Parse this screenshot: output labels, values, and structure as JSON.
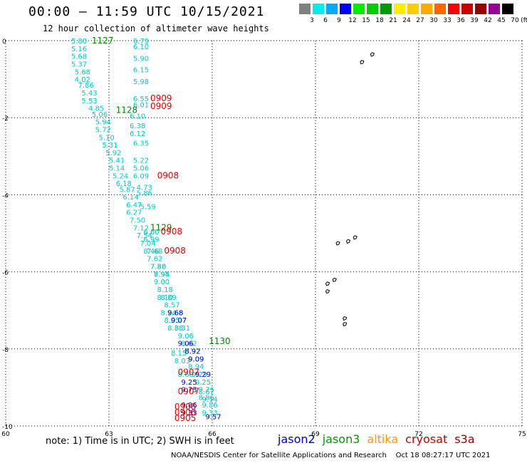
{
  "header": {
    "title": "00:00 – 11:59 UTC 10/15/2021",
    "subtitle": "12 hour collection of altimeter wave heights"
  },
  "scale": {
    "labels": [
      "3",
      "6",
      "9",
      "12",
      "15",
      "18",
      "21",
      "24",
      "27",
      "30",
      "33",
      "36",
      "39",
      "42",
      "45",
      "70"
    ],
    "unit": "(ft)",
    "colors": [
      "#808080",
      "#00eeee",
      "#00aaff",
      "#0000ff",
      "#00ee00",
      "#00cc00",
      "#009900",
      "#ffee00",
      "#ffcc00",
      "#ffaa00",
      "#ff6600",
      "#ff0000",
      "#cc0000",
      "#990000",
      "#990099",
      "#000000"
    ]
  },
  "footer": {
    "note": "note: 1) Time is in UTC; 2) SWH is in feet",
    "credit": "NOAA/NESDIS Center for Satellite Applications and Research    Oct 18 08:27:17 UTC 2021",
    "satellites": [
      {
        "name": "jason2",
        "color": "#0000cc"
      },
      {
        "name": "jason3",
        "color": "#009900"
      },
      {
        "name": "altika",
        "color": "#ff9900"
      },
      {
        "name": "cryosat",
        "color": "#cc0000"
      },
      {
        "name": "s3a",
        "color": "#990000"
      }
    ]
  },
  "chart_data": {
    "type": "scatter",
    "title": "00:00 – 11:59 UTC 10/15/2021",
    "subtitle": "12 hour collection of altimeter wave heights",
    "xlim": [
      60,
      75
    ],
    "ylim": [
      -10,
      0
    ],
    "x_ticks": [
      "60",
      "63",
      "66",
      "69",
      "72",
      "75"
    ],
    "y_ticks": [
      "0",
      "-2",
      "-4",
      "-6",
      "-8",
      "-10"
    ],
    "grid": true,
    "track_color": "#00cccc",
    "time_labels": [
      {
        "text": "1127",
        "x": 62.5,
        "y": 0.0,
        "color": "#008800"
      },
      {
        "text": "0909",
        "x": 64.2,
        "y": -1.5,
        "color": "#ee0000"
      },
      {
        "text": "0909",
        "x": 64.2,
        "y": -1.7,
        "color": "#ee0000"
      },
      {
        "text": "1128",
        "x": 63.2,
        "y": -1.8,
        "color": "#008800"
      },
      {
        "text": "0908",
        "x": 64.4,
        "y": -3.5,
        "color": "#ee0000"
      },
      {
        "text": "1129",
        "x": 64.2,
        "y": -4.85,
        "color": "#008800"
      },
      {
        "text": "0908",
        "x": 64.5,
        "y": -4.95,
        "color": "#ee0000"
      },
      {
        "text": "0908",
        "x": 64.6,
        "y": -5.45,
        "color": "#ee0000"
      },
      {
        "text": "1130",
        "x": 65.9,
        "y": -7.8,
        "color": "#008800"
      },
      {
        "text": "0907",
        "x": 65.0,
        "y": -8.6,
        "color": "#ee0000"
      },
      {
        "text": "0907",
        "x": 65.0,
        "y": -9.1,
        "color": "#ee0000"
      },
      {
        "text": "0906",
        "x": 64.9,
        "y": -9.5,
        "color": "#ee0000"
      },
      {
        "text": "0906",
        "x": 64.9,
        "y": -9.65,
        "color": "#ee0000"
      },
      {
        "text": "0905",
        "x": 64.9,
        "y": -9.8,
        "color": "#ee0000"
      }
    ],
    "series": [
      {
        "color": "#00cccc",
        "points": [
          {
            "x": 61.9,
            "y": 0.0,
            "v": "5.80"
          },
          {
            "x": 61.9,
            "y": -0.2,
            "v": "5.16"
          },
          {
            "x": 61.9,
            "y": -0.4,
            "v": "5.68"
          },
          {
            "x": 61.9,
            "y": -0.6,
            "v": "5.37"
          },
          {
            "x": 62.0,
            "y": -0.8,
            "v": "5.68"
          },
          {
            "x": 62.0,
            "y": -1.0,
            "v": "4.02"
          },
          {
            "x": 62.1,
            "y": -1.15,
            "v": "7.86"
          },
          {
            "x": 62.2,
            "y": -1.35,
            "v": "5.43"
          },
          {
            "x": 62.2,
            "y": -1.55,
            "v": "5.53"
          },
          {
            "x": 62.4,
            "y": -1.75,
            "v": "4.85"
          },
          {
            "x": 62.5,
            "y": -1.9,
            "v": "5.06"
          },
          {
            "x": 62.6,
            "y": -2.1,
            "v": "5.94"
          },
          {
            "x": 62.6,
            "y": -2.3,
            "v": "5.72"
          },
          {
            "x": 62.7,
            "y": -2.5,
            "v": "5.10"
          },
          {
            "x": 62.8,
            "y": -2.7,
            "v": "5.31"
          },
          {
            "x": 62.9,
            "y": -2.9,
            "v": "5.92"
          },
          {
            "x": 63.0,
            "y": -3.1,
            "v": "5.41"
          },
          {
            "x": 63.0,
            "y": -3.3,
            "v": "5.14"
          },
          {
            "x": 63.1,
            "y": -3.5,
            "v": "5.24"
          },
          {
            "x": 63.2,
            "y": -3.7,
            "v": "6.18"
          },
          {
            "x": 63.3,
            "y": -3.85,
            "v": "5.87"
          },
          {
            "x": 63.4,
            "y": -4.05,
            "v": "6.14"
          },
          {
            "x": 63.5,
            "y": -4.25,
            "v": "6.47"
          },
          {
            "x": 63.5,
            "y": -4.45,
            "v": "6.27"
          },
          {
            "x": 63.6,
            "y": -4.65,
            "v": "7.50"
          },
          {
            "x": 63.7,
            "y": -4.85,
            "v": "7.12"
          },
          {
            "x": 63.8,
            "y": -5.05,
            "v": "7.54"
          },
          {
            "x": 63.9,
            "y": -5.25,
            "v": "7.04"
          },
          {
            "x": 64.0,
            "y": -5.45,
            "v": "8.46"
          },
          {
            "x": 64.1,
            "y": -5.65,
            "v": "7.62"
          },
          {
            "x": 64.2,
            "y": -5.85,
            "v": "7.86"
          },
          {
            "x": 64.3,
            "y": -6.05,
            "v": "8.94"
          },
          {
            "x": 64.3,
            "y": -6.25,
            "v": "9.00"
          },
          {
            "x": 64.4,
            "y": -6.45,
            "v": "8.18"
          },
          {
            "x": 64.5,
            "y": -6.65,
            "v": "8.89"
          },
          {
            "x": 64.6,
            "y": -6.85,
            "v": "8.57"
          },
          {
            "x": 64.7,
            "y": -7.05,
            "v": "9.68"
          },
          {
            "x": 64.8,
            "y": -7.25,
            "v": "9.07"
          },
          {
            "x": 64.9,
            "y": -7.45,
            "v": "8.31"
          },
          {
            "x": 65.0,
            "y": -7.65,
            "v": "9.06"
          },
          {
            "x": 65.1,
            "y": -7.85,
            "v": "8.62"
          },
          {
            "x": 65.2,
            "y": -8.05,
            "v": "8.92"
          },
          {
            "x": 65.3,
            "y": -8.25,
            "v": "9.09"
          },
          {
            "x": 65.3,
            "y": -8.45,
            "v": "8.94"
          },
          {
            "x": 65.4,
            "y": -8.65,
            "v": "9.29"
          },
          {
            "x": 65.5,
            "y": -8.85,
            "v": "9.25"
          },
          {
            "x": 65.6,
            "y": -9.05,
            "v": "9.75"
          },
          {
            "x": 65.6,
            "y": -9.25,
            "v": "8.86"
          },
          {
            "x": 65.7,
            "y": -9.45,
            "v": "9.86"
          },
          {
            "x": 65.7,
            "y": -9.65,
            "v": "9.33"
          }
        ]
      },
      {
        "color": "#00cccc",
        "points": [
          {
            "x": 63.7,
            "y": 0.0,
            "v": "6.79"
          },
          {
            "x": 63.7,
            "y": -0.15,
            "v": "6.10"
          },
          {
            "x": 63.7,
            "y": -0.45,
            "v": "5.90"
          },
          {
            "x": 63.7,
            "y": -0.75,
            "v": "6.15"
          },
          {
            "x": 63.7,
            "y": -1.05,
            "v": "5.98"
          },
          {
            "x": 63.7,
            "y": -1.5,
            "v": "6.55"
          },
          {
            "x": 63.7,
            "y": -1.65,
            "v": "6.01"
          },
          {
            "x": 63.6,
            "y": -1.95,
            "v": "6.10"
          },
          {
            "x": 63.6,
            "y": -2.2,
            "v": "6.38"
          },
          {
            "x": 63.6,
            "y": -2.4,
            "v": "6.12"
          },
          {
            "x": 63.7,
            "y": -2.65,
            "v": "6.35"
          },
          {
            "x": 63.7,
            "y": -3.1,
            "v": "5.22"
          },
          {
            "x": 63.7,
            "y": -3.3,
            "v": "5.06"
          },
          {
            "x": 63.7,
            "y": -3.5,
            "v": "6.09"
          },
          {
            "x": 63.8,
            "y": -3.8,
            "v": "4.73"
          },
          {
            "x": 63.8,
            "y": -3.95,
            "v": "5.86"
          },
          {
            "x": 63.9,
            "y": -4.3,
            "v": "5.59"
          },
          {
            "x": 64.0,
            "y": -4.95,
            "v": "6.60"
          },
          {
            "x": 64.0,
            "y": -5.15,
            "v": "6.99"
          },
          {
            "x": 64.1,
            "y": -5.45,
            "v": "7.68"
          },
          {
            "x": 64.2,
            "y": -5.85,
            "v": "7.80"
          },
          {
            "x": 64.3,
            "y": -6.05,
            "v": "7.95"
          },
          {
            "x": 64.4,
            "y": -6.65,
            "v": "8.10"
          },
          {
            "x": 64.5,
            "y": -7.05,
            "v": "8.24"
          },
          {
            "x": 64.6,
            "y": -7.25,
            "v": "8.05"
          },
          {
            "x": 64.7,
            "y": -7.45,
            "v": "8.38"
          },
          {
            "x": 64.8,
            "y": -8.1,
            "v": "8.15"
          },
          {
            "x": 64.9,
            "y": -8.3,
            "v": "8.03"
          },
          {
            "x": 65.0,
            "y": -8.65,
            "v": "8.60"
          },
          {
            "x": 65.6,
            "y": -9.1,
            "v": "8.67"
          },
          {
            "x": 65.7,
            "y": -9.3,
            "v": "9.14"
          }
        ]
      },
      {
        "color": "#0000cc",
        "points": [
          {
            "x": 64.7,
            "y": -7.05,
            "v": "9.68"
          },
          {
            "x": 64.8,
            "y": -7.25,
            "v": "9.07"
          },
          {
            "x": 65.0,
            "y": -7.85,
            "v": "9.06"
          },
          {
            "x": 65.2,
            "y": -8.05,
            "v": "8.92"
          },
          {
            "x": 65.3,
            "y": -8.25,
            "v": "9.09"
          },
          {
            "x": 65.5,
            "y": -8.65,
            "v": "9.29"
          },
          {
            "x": 65.1,
            "y": -8.85,
            "v": "9.25"
          },
          {
            "x": 65.1,
            "y": -9.05,
            "v": "9.75"
          },
          {
            "x": 65.1,
            "y": -9.45,
            "v": "9.86"
          },
          {
            "x": 65.1,
            "y": -9.65,
            "v": "9.33"
          },
          {
            "x": 65.8,
            "y": -9.75,
            "v": "9.57"
          }
        ]
      }
    ],
    "land": [
      {
        "x": 70.3,
        "y": -0.55
      },
      {
        "x": 70.6,
        "y": -0.35
      },
      {
        "x": 69.6,
        "y": -5.25
      },
      {
        "x": 69.9,
        "y": -5.2
      },
      {
        "x": 70.1,
        "y": -5.1
      },
      {
        "x": 69.3,
        "y": -6.3
      },
      {
        "x": 69.5,
        "y": -6.2
      },
      {
        "x": 69.3,
        "y": -6.5
      },
      {
        "x": 69.8,
        "y": -7.2
      },
      {
        "x": 69.8,
        "y": -7.35
      }
    ]
  }
}
